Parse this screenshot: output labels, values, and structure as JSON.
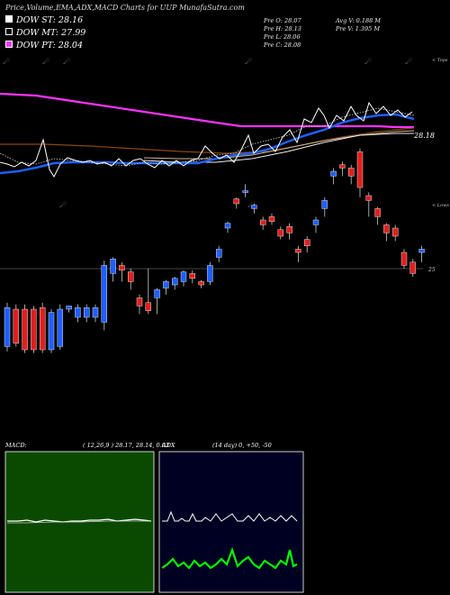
{
  "title": "Price,Volume,EMA,ADX,MACD Charts for UUP MunafaSutra.com",
  "legend": [
    {
      "label": "DOW ST: 28.16",
      "color": "#ffffff"
    },
    {
      "label": "DOW MT: 27.99",
      "color": "#000000"
    },
    {
      "label": "DOW PT: 28.04",
      "color": "#ff33ff"
    }
  ],
  "info_left": [
    "Pre O: 28.07",
    "Pre H: 28.13",
    "Pre L: 28.06",
    "Pre C: 28.08"
  ],
  "info_right": [
    "Avg V: 0.188 M",
    "Pre V: 1.395 M"
  ],
  "labels": {
    "tops": "< Tops",
    "lows": "< Lows",
    "price_ema": "28.18",
    "price_line": "25",
    "macd": "MACD:",
    "macd_params": "( 12,26,9 ) 28.17, 28.14, 0.03",
    "adx": "ADX",
    "adx_params": "(14 day) 0, +50, -50"
  },
  "colors": {
    "up": "#1f5fff",
    "down": "#e02020",
    "pink": "#ff33ff",
    "blue": "#1f5fff",
    "brown": "#a0522d",
    "macd_bg": "#0a4a00",
    "adx_bg": "#000022"
  },
  "chart_data": {
    "type": "candlestick",
    "candles": [
      [
        0.2,
        0.44,
        0.17,
        0.47,
        "u"
      ],
      [
        0.22,
        0.43,
        0.2,
        0.46,
        "d"
      ],
      [
        0.18,
        0.43,
        0.16,
        0.46,
        "d"
      ],
      [
        0.18,
        0.43,
        0.16,
        0.45,
        "d"
      ],
      [
        0.18,
        0.44,
        0.16,
        0.47,
        "d"
      ],
      [
        0.18,
        0.41,
        0.16,
        0.43,
        "u"
      ],
      [
        0.2,
        0.43,
        0.18,
        0.46,
        "u"
      ],
      [
        0.45,
        0.43,
        0.41,
        0.45,
        "u"
      ],
      [
        0.38,
        0.44,
        0.35,
        0.46,
        "u"
      ],
      [
        0.38,
        0.44,
        0.35,
        0.46,
        "u"
      ],
      [
        0.38,
        0.44,
        0.35,
        0.46,
        "u"
      ],
      [
        0.35,
        0.7,
        0.3,
        0.73,
        "u"
      ],
      [
        0.65,
        0.74,
        0.6,
        0.75,
        "u"
      ],
      [
        0.67,
        0.7,
        0.6,
        0.72,
        "d"
      ],
      [
        0.6,
        0.66,
        0.55,
        0.68,
        "d"
      ],
      [
        0.45,
        0.5,
        0.4,
        0.52,
        "d"
      ],
      [
        0.42,
        0.47,
        0.4,
        0.68,
        "d"
      ],
      [
        0.55,
        0.5,
        0.4,
        0.56,
        "u"
      ],
      [
        0.56,
        0.6,
        0.52,
        0.61,
        "u"
      ],
      [
        0.58,
        0.62,
        0.55,
        0.63,
        "u"
      ],
      [
        0.6,
        0.66,
        0.57,
        0.67,
        "u"
      ],
      [
        0.62,
        0.65,
        0.59,
        0.67,
        "d"
      ],
      [
        0.58,
        0.6,
        0.56,
        0.61,
        "d"
      ],
      [
        0.6,
        0.7,
        0.58,
        0.72,
        "u"
      ],
      [
        0.75,
        0.8,
        0.72,
        0.82,
        "u"
      ],
      [
        0.93,
        0.96,
        0.9,
        0.97,
        "u"
      ],
      [
        1.08,
        1.11,
        1.05,
        1.12,
        "d"
      ],
      [
        1.15,
        1.16,
        1.12,
        1.2,
        "u"
      ],
      [
        1.05,
        1.07,
        1.02,
        1.08,
        "u"
      ],
      [
        0.95,
        0.98,
        0.92,
        1.0,
        "d"
      ],
      [
        0.97,
        1.0,
        0.95,
        1.02,
        "d"
      ],
      [
        0.88,
        0.92,
        0.86,
        0.94,
        "d"
      ],
      [
        0.9,
        0.94,
        0.86,
        0.96,
        "d"
      ],
      [
        0.78,
        0.8,
        0.72,
        0.82,
        "d"
      ],
      [
        0.82,
        0.86,
        0.78,
        0.88,
        "d"
      ],
      [
        0.95,
        0.98,
        0.9,
        1.0,
        "u"
      ],
      [
        1.05,
        1.1,
        1.0,
        1.12,
        "u"
      ],
      [
        1.25,
        1.28,
        1.2,
        1.3,
        "u"
      ],
      [
        1.3,
        1.32,
        1.25,
        1.34,
        "d"
      ],
      [
        1.25,
        1.3,
        1.2,
        1.32,
        "d"
      ],
      [
        1.18,
        1.4,
        1.12,
        1.42,
        "d"
      ],
      [
        1.1,
        1.13,
        1.0,
        1.15,
        "d"
      ],
      [
        1.0,
        1.05,
        0.95,
        1.06,
        "d"
      ],
      [
        0.9,
        0.95,
        0.85,
        0.96,
        "d"
      ],
      [
        0.88,
        0.93,
        0.85,
        0.95,
        "d"
      ],
      [
        0.7,
        0.78,
        0.68,
        0.8,
        "d"
      ],
      [
        0.65,
        0.72,
        0.63,
        0.74,
        "d"
      ],
      [
        0.78,
        0.8,
        0.72,
        0.82,
        "u"
      ]
    ]
  }
}
